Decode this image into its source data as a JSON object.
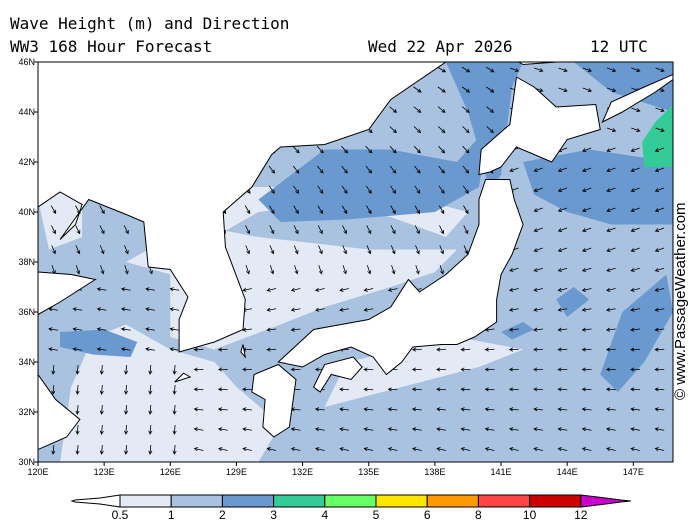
{
  "header": {
    "title": "Wave Height (m) and Direction",
    "subtitle": "WW3 168 Hour Forecast",
    "date": "Wed 22 Apr 2026",
    "time": "12 UTC"
  },
  "copyright": "© www.PassageWeather.com",
  "map": {
    "lon_range": [
      120,
      148.8
    ],
    "lat_range": [
      30,
      46
    ],
    "lon_labels": [
      "120E",
      "123E",
      "126E",
      "129E",
      "132E",
      "135E",
      "138E",
      "141E",
      "144E",
      "147E"
    ],
    "lat_labels": [
      "30N",
      "32N",
      "34N",
      "36N",
      "38N",
      "40N",
      "42N",
      "44N",
      "46N"
    ],
    "colors": {
      "land": "#ffffff",
      "lt05_1": "#e3e9f5",
      "r1_2": "#a8c2e0",
      "r2_3": "#6a99d0",
      "r3_4": "#33cc99"
    }
  },
  "colorbar": {
    "labels": [
      "0.5",
      "1",
      "2",
      "3",
      "4",
      "5",
      "6",
      "8",
      "10",
      "12"
    ],
    "colors": [
      "#e3e9f5",
      "#a8c2e0",
      "#6a99d0",
      "#33cc99",
      "#66ff66",
      "#ffe600",
      "#ff9900",
      "#ff4444",
      "#cc0000"
    ],
    "over_color": "#cc00cc"
  }
}
